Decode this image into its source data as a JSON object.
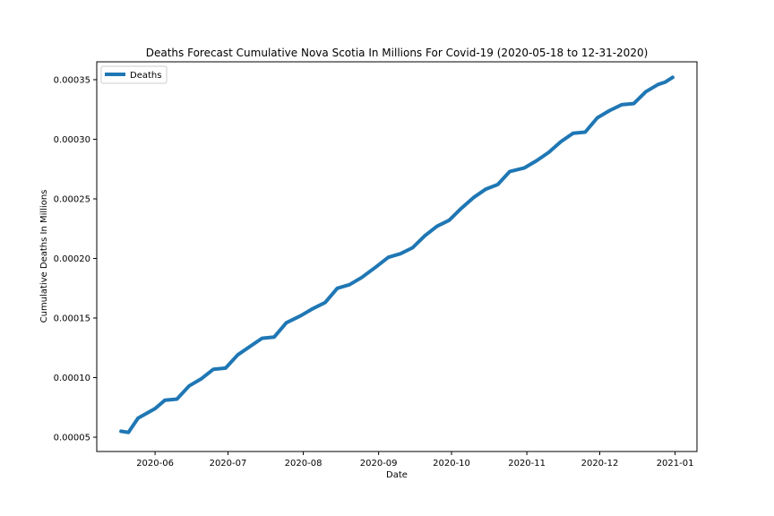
{
  "chart_data": {
    "type": "line",
    "title": "Deaths Forecast Cumulative Nova Scotia In Millions For Covid-19 (2020-05-18 to 12-31-2020)",
    "xlabel": "Date",
    "ylabel": "Cumulative Deaths In Millions",
    "x_tick_labels": [
      "2020-06",
      "2020-07",
      "2020-08",
      "2020-09",
      "2020-10",
      "2020-11",
      "2020-12",
      "2021-01"
    ],
    "x_tick_dates": [
      "2020-06-01",
      "2020-07-01",
      "2020-08-01",
      "2020-09-01",
      "2020-10-01",
      "2020-11-01",
      "2020-12-01",
      "2021-01-01"
    ],
    "y_tick_labels": [
      "0.00005",
      "0.00010",
      "0.00015",
      "0.00020",
      "0.00025",
      "0.00030",
      "0.00035"
    ],
    "y_tick_values": [
      5e-05,
      0.0001,
      0.00015,
      0.0002,
      0.00025,
      0.0003,
      0.00035
    ],
    "xlim": [
      "2020-05-08",
      "2021-01-10"
    ],
    "ylim": [
      3.8e-05,
      0.000365
    ],
    "legend_position": "upper-left",
    "grid": false,
    "series": [
      {
        "name": "Deaths",
        "color": "#1f77b4",
        "x": [
          "2020-05-18",
          "2020-05-21",
          "2020-05-25",
          "2020-06-01",
          "2020-06-05",
          "2020-06-10",
          "2020-06-15",
          "2020-06-20",
          "2020-06-25",
          "2020-06-30",
          "2020-07-05",
          "2020-07-10",
          "2020-07-15",
          "2020-07-20",
          "2020-07-25",
          "2020-07-31",
          "2020-08-05",
          "2020-08-10",
          "2020-08-15",
          "2020-08-20",
          "2020-08-25",
          "2020-08-31",
          "2020-09-05",
          "2020-09-10",
          "2020-09-15",
          "2020-09-20",
          "2020-09-25",
          "2020-09-30",
          "2020-10-05",
          "2020-10-10",
          "2020-10-15",
          "2020-10-20",
          "2020-10-25",
          "2020-10-31",
          "2020-11-05",
          "2020-11-10",
          "2020-11-15",
          "2020-11-20",
          "2020-11-25",
          "2020-11-30",
          "2020-12-05",
          "2020-12-10",
          "2020-12-15",
          "2020-12-20",
          "2020-12-25",
          "2020-12-28",
          "2020-12-31"
        ],
        "values": [
          5.5e-05,
          5.4e-05,
          6.6e-05,
          7.4e-05,
          8.1e-05,
          8.2e-05,
          9.3e-05,
          9.9e-05,
          0.000107,
          0.000108,
          0.000119,
          0.000126,
          0.000133,
          0.000134,
          0.000146,
          0.000152,
          0.000158,
          0.000163,
          0.000175,
          0.000178,
          0.000184,
          0.000193,
          0.000201,
          0.000204,
          0.000209,
          0.000219,
          0.000227,
          0.000232,
          0.000242,
          0.000251,
          0.000258,
          0.000262,
          0.000273,
          0.000276,
          0.000282,
          0.000289,
          0.000298,
          0.000305,
          0.000306,
          0.000318,
          0.000324,
          0.000329,
          0.00033,
          0.00034,
          0.000346,
          0.000348,
          0.000352
        ]
      }
    ]
  }
}
